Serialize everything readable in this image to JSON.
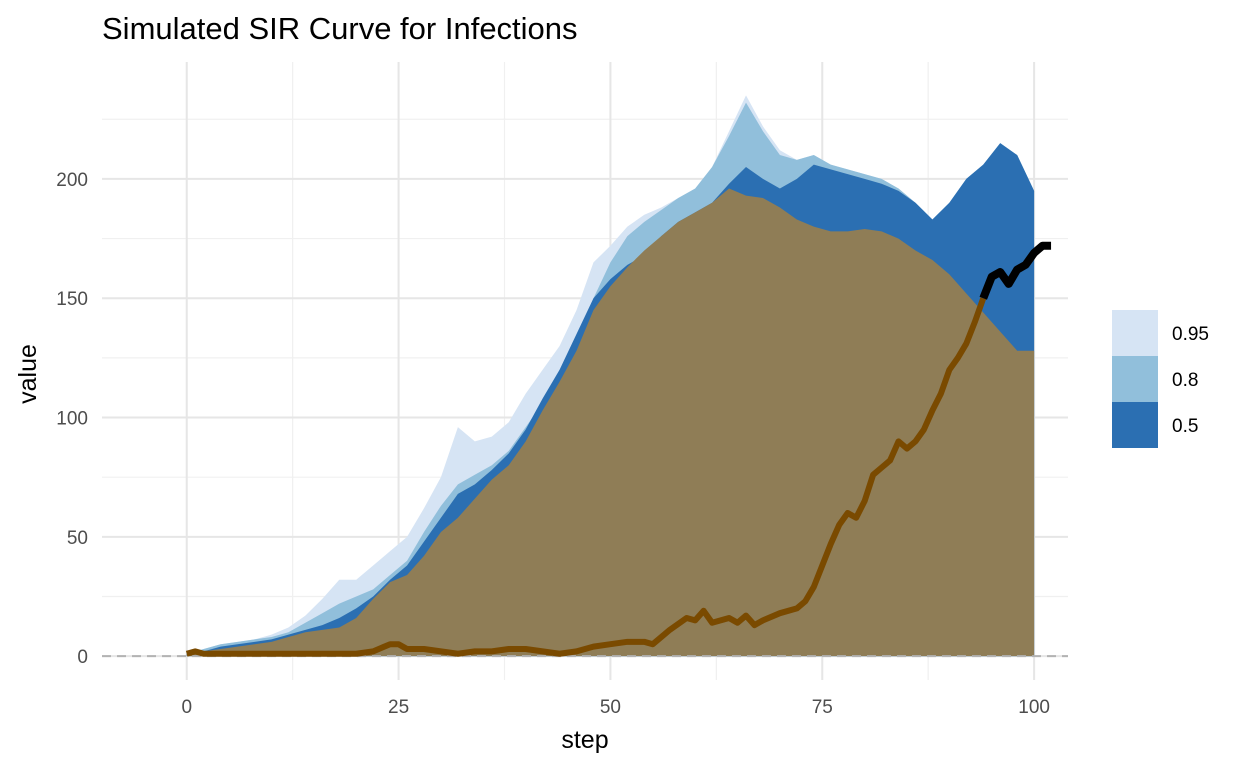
{
  "chart_data": {
    "type": "area",
    "title": "Simulated SIR Curve for Infections",
    "xlabel": "step",
    "ylabel": "value",
    "xlim": [
      -10,
      104
    ],
    "ylim": [
      -10,
      249
    ],
    "xticks": [
      0,
      25,
      50,
      75,
      100
    ],
    "yticks": [
      0,
      50,
      100,
      150,
      200
    ],
    "grid": true,
    "legend": {
      "position": "right",
      "entries": [
        {
          "label": "0.95",
          "color": "#d6e4f4"
        },
        {
          "label": "0.8",
          "color": "#91bfdb"
        },
        {
          "label": "0.5",
          "color": "#2b6fb2"
        }
      ]
    },
    "bands": [
      {
        "name": "0.95",
        "color": "#d6e4f4",
        "points": [
          [
            0,
            1
          ],
          [
            2,
            3
          ],
          [
            4,
            5
          ],
          [
            6,
            6
          ],
          [
            8,
            7
          ],
          [
            10,
            9
          ],
          [
            12,
            12
          ],
          [
            14,
            17
          ],
          [
            16,
            24
          ],
          [
            18,
            32
          ],
          [
            20,
            32
          ],
          [
            22,
            38
          ],
          [
            24,
            44
          ],
          [
            26,
            50
          ],
          [
            28,
            62
          ],
          [
            30,
            75
          ],
          [
            32,
            96
          ],
          [
            34,
            90
          ],
          [
            36,
            92
          ],
          [
            38,
            98
          ],
          [
            40,
            110
          ],
          [
            42,
            120
          ],
          [
            44,
            130
          ],
          [
            46,
            145
          ],
          [
            48,
            165
          ],
          [
            50,
            172
          ],
          [
            52,
            180
          ],
          [
            54,
            185
          ],
          [
            56,
            188
          ],
          [
            58,
            192
          ],
          [
            60,
            195
          ],
          [
            62,
            205
          ],
          [
            64,
            220
          ],
          [
            66,
            235
          ],
          [
            68,
            222
          ],
          [
            70,
            212
          ],
          [
            72,
            208
          ],
          [
            74,
            210
          ],
          [
            76,
            206
          ],
          [
            78,
            204
          ],
          [
            80,
            202
          ],
          [
            82,
            200
          ],
          [
            84,
            196
          ],
          [
            86,
            190
          ],
          [
            88,
            183
          ],
          [
            90,
            190
          ],
          [
            92,
            200
          ],
          [
            94,
            206
          ],
          [
            96,
            215
          ],
          [
            98,
            210
          ],
          [
            100,
            195
          ]
        ]
      },
      {
        "name": "0.8",
        "color": "#91bfdb",
        "points": [
          [
            0,
            1
          ],
          [
            2,
            3
          ],
          [
            4,
            5
          ],
          [
            6,
            6
          ],
          [
            8,
            7
          ],
          [
            10,
            8
          ],
          [
            12,
            10
          ],
          [
            14,
            14
          ],
          [
            16,
            18
          ],
          [
            18,
            22
          ],
          [
            20,
            25
          ],
          [
            22,
            28
          ],
          [
            24,
            34
          ],
          [
            26,
            40
          ],
          [
            28,
            52
          ],
          [
            30,
            63
          ],
          [
            32,
            72
          ],
          [
            34,
            76
          ],
          [
            36,
            80
          ],
          [
            38,
            86
          ],
          [
            40,
            96
          ],
          [
            42,
            106
          ],
          [
            44,
            118
          ],
          [
            46,
            132
          ],
          [
            48,
            150
          ],
          [
            50,
            165
          ],
          [
            52,
            176
          ],
          [
            54,
            182
          ],
          [
            56,
            187
          ],
          [
            58,
            192
          ],
          [
            60,
            196
          ],
          [
            62,
            205
          ],
          [
            64,
            218
          ],
          [
            66,
            232
          ],
          [
            68,
            220
          ],
          [
            70,
            210
          ],
          [
            72,
            208
          ],
          [
            74,
            210
          ],
          [
            76,
            206
          ],
          [
            78,
            204
          ],
          [
            80,
            202
          ],
          [
            82,
            200
          ],
          [
            84,
            196
          ],
          [
            86,
            190
          ],
          [
            88,
            183
          ],
          [
            90,
            190
          ],
          [
            92,
            200
          ],
          [
            94,
            206
          ],
          [
            96,
            215
          ],
          [
            98,
            210
          ],
          [
            100,
            195
          ]
        ]
      },
      {
        "name": "0.5",
        "color": "#2b6fb2",
        "points": [
          [
            0,
            1
          ],
          [
            2,
            2
          ],
          [
            4,
            4
          ],
          [
            6,
            5
          ],
          [
            8,
            6
          ],
          [
            10,
            7
          ],
          [
            12,
            9
          ],
          [
            14,
            11
          ],
          [
            16,
            13
          ],
          [
            18,
            16
          ],
          [
            20,
            20
          ],
          [
            22,
            25
          ],
          [
            24,
            32
          ],
          [
            26,
            38
          ],
          [
            28,
            48
          ],
          [
            30,
            58
          ],
          [
            32,
            68
          ],
          [
            34,
            72
          ],
          [
            36,
            78
          ],
          [
            38,
            85
          ],
          [
            40,
            95
          ],
          [
            42,
            108
          ],
          [
            44,
            120
          ],
          [
            46,
            135
          ],
          [
            48,
            150
          ],
          [
            50,
            158
          ],
          [
            52,
            164
          ],
          [
            54,
            168
          ],
          [
            56,
            176
          ],
          [
            58,
            182
          ],
          [
            60,
            186
          ],
          [
            62,
            190
          ],
          [
            64,
            198
          ],
          [
            66,
            205
          ],
          [
            68,
            200
          ],
          [
            70,
            196
          ],
          [
            72,
            200
          ],
          [
            74,
            206
          ],
          [
            76,
            204
          ],
          [
            78,
            202
          ],
          [
            80,
            200
          ],
          [
            82,
            198
          ],
          [
            84,
            195
          ],
          [
            86,
            190
          ],
          [
            88,
            183
          ],
          [
            90,
            190
          ],
          [
            92,
            200
          ],
          [
            94,
            206
          ],
          [
            96,
            215
          ],
          [
            98,
            210
          ],
          [
            100,
            195
          ]
        ]
      }
    ],
    "area": {
      "name": "",
      "color": "#8f7d56",
      "points": [
        [
          0,
          1
        ],
        [
          2,
          2
        ],
        [
          4,
          3
        ],
        [
          6,
          4
        ],
        [
          8,
          5
        ],
        [
          10,
          6
        ],
        [
          12,
          8
        ],
        [
          14,
          10
        ],
        [
          16,
          11
        ],
        [
          18,
          12
        ],
        [
          20,
          16
        ],
        [
          22,
          24
        ],
        [
          24,
          31
        ],
        [
          26,
          34
        ],
        [
          28,
          42
        ],
        [
          30,
          52
        ],
        [
          32,
          58
        ],
        [
          34,
          66
        ],
        [
          36,
          74
        ],
        [
          38,
          80
        ],
        [
          40,
          90
        ],
        [
          42,
          103
        ],
        [
          44,
          115
        ],
        [
          46,
          128
        ],
        [
          48,
          145
        ],
        [
          50,
          155
        ],
        [
          52,
          163
        ],
        [
          54,
          170
        ],
        [
          56,
          176
        ],
        [
          58,
          182
        ],
        [
          60,
          186
        ],
        [
          62,
          190
        ],
        [
          64,
          196
        ],
        [
          66,
          193
        ],
        [
          68,
          192
        ],
        [
          70,
          188
        ],
        [
          72,
          183
        ],
        [
          74,
          180
        ],
        [
          76,
          178
        ],
        [
          78,
          178
        ],
        [
          80,
          179
        ],
        [
          82,
          178
        ],
        [
          84,
          175
        ],
        [
          86,
          170
        ],
        [
          88,
          166
        ],
        [
          90,
          160
        ],
        [
          92,
          152
        ],
        [
          94,
          144
        ],
        [
          96,
          136
        ],
        [
          98,
          128
        ],
        [
          100,
          128
        ]
      ]
    },
    "lines": [
      {
        "name": "",
        "color": "#7a4a00",
        "width": 6,
        "points": [
          [
            0,
            1
          ],
          [
            1,
            2
          ],
          [
            2,
            1
          ],
          [
            4,
            1
          ],
          [
            6,
            1
          ],
          [
            8,
            1
          ],
          [
            10,
            1
          ],
          [
            12,
            1
          ],
          [
            14,
            1
          ],
          [
            16,
            1
          ],
          [
            18,
            1
          ],
          [
            20,
            1
          ],
          [
            22,
            2
          ],
          [
            24,
            5
          ],
          [
            25,
            5
          ],
          [
            26,
            3
          ],
          [
            28,
            3
          ],
          [
            30,
            2
          ],
          [
            32,
            1
          ],
          [
            34,
            2
          ],
          [
            36,
            2
          ],
          [
            38,
            3
          ],
          [
            40,
            3
          ],
          [
            42,
            2
          ],
          [
            44,
            1
          ],
          [
            46,
            2
          ],
          [
            48,
            4
          ],
          [
            50,
            5
          ],
          [
            52,
            6
          ],
          [
            54,
            6
          ],
          [
            55,
            5
          ],
          [
            57,
            11
          ],
          [
            59,
            16
          ],
          [
            60,
            15
          ],
          [
            61,
            19
          ],
          [
            62,
            14
          ],
          [
            63,
            15
          ],
          [
            64,
            16
          ],
          [
            65,
            14
          ],
          [
            66,
            17
          ],
          [
            67,
            13
          ],
          [
            68,
            15
          ],
          [
            70,
            18
          ],
          [
            72,
            20
          ],
          [
            73,
            23
          ],
          [
            74,
            29
          ],
          [
            75,
            38
          ],
          [
            76,
            47
          ],
          [
            77,
            55
          ],
          [
            78,
            60
          ],
          [
            79,
            58
          ],
          [
            80,
            65
          ],
          [
            81,
            76
          ],
          [
            82,
            79
          ],
          [
            83,
            82
          ],
          [
            84,
            90
          ],
          [
            85,
            87
          ],
          [
            86,
            90
          ],
          [
            87,
            95
          ],
          [
            88,
            103
          ],
          [
            89,
            110
          ],
          [
            90,
            120
          ],
          [
            91,
            125
          ],
          [
            92,
            131
          ],
          [
            93,
            140
          ],
          [
            94,
            150
          ]
        ]
      },
      {
        "name": "",
        "color": "#000000",
        "width": 8,
        "points": [
          [
            94,
            150
          ],
          [
            95,
            159
          ],
          [
            96,
            161
          ],
          [
            97,
            156
          ],
          [
            98,
            162
          ],
          [
            99,
            164
          ],
          [
            100,
            169
          ],
          [
            101,
            172
          ],
          [
            102,
            172
          ]
        ]
      }
    ],
    "baseline": {
      "y": 0,
      "color": "#b3b3b3",
      "dashed": true
    }
  }
}
